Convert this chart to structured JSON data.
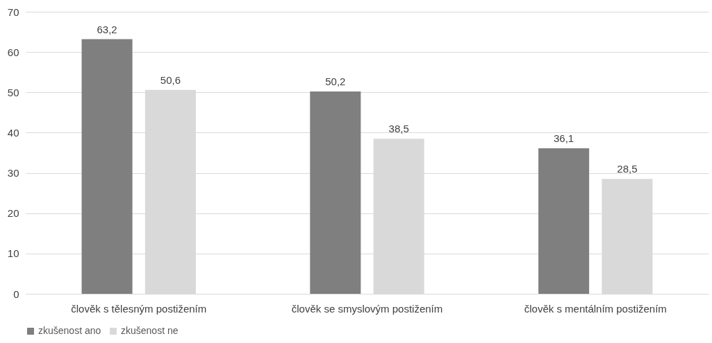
{
  "chart_data": {
    "type": "bar",
    "categories": [
      "člověk s tělesným postižením",
      "člověk se smyslovým postižením",
      "člověk s mentálním postižením"
    ],
    "series": [
      {
        "name": "zkušenost ano",
        "color": "#7f7f7f",
        "values": [
          63.2,
          50.2,
          36.1
        ],
        "value_labels": [
          "63,2",
          "50,2",
          "36,1"
        ]
      },
      {
        "name": "zkušenost ne",
        "color": "#d9d9d9",
        "values": [
          50.6,
          38.5,
          28.5
        ],
        "value_labels": [
          "50,6",
          "38,5",
          "28,5"
        ]
      }
    ],
    "ylim": [
      0,
      70
    ],
    "yticks": [
      0,
      10,
      20,
      30,
      40,
      50,
      60,
      70
    ],
    "grid": "y",
    "legend": "bottom"
  }
}
